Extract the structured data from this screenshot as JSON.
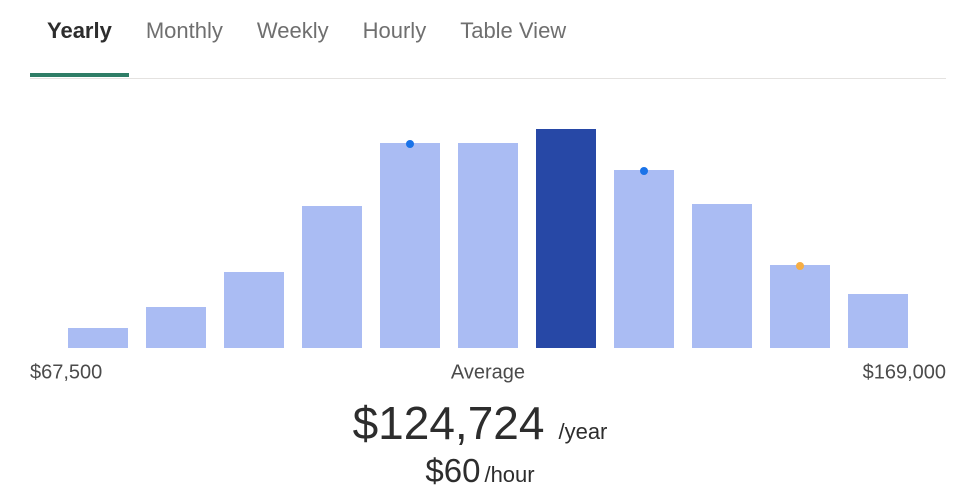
{
  "tabs": {
    "items": [
      "Yearly",
      "Monthly",
      "Weekly",
      "Hourly",
      "Table View"
    ],
    "active": 0
  },
  "chart_data": {
    "type": "bar",
    "values": [
      20,
      41,
      76,
      142,
      205,
      205,
      219,
      178,
      144,
      83,
      54
    ],
    "colors": [
      "#aabcf3",
      "#aabcf3",
      "#aabcf3",
      "#aabcf3",
      "#aabcf3",
      "#aabcf3",
      "#2748a6",
      "#aabcf3",
      "#aabcf3",
      "#aabcf3",
      "#aabcf3"
    ],
    "dot_colors": [
      null,
      null,
      null,
      null,
      "#1a73e8",
      null,
      null,
      "#1a73e8",
      null,
      "#f6ae45",
      null
    ],
    "ylim": [
      0,
      250
    ],
    "xlim": [
      67500,
      169000
    ],
    "xticks": [
      {
        "value": 67500,
        "label": "$67,500"
      },
      {
        "value": 169000,
        "label": "$169,000"
      }
    ],
    "annotation": "Average"
  },
  "summary": {
    "yearly": {
      "amount": "$124,724",
      "unit": "/year"
    },
    "hourly": {
      "amount": "$60",
      "unit": "/hour"
    }
  }
}
